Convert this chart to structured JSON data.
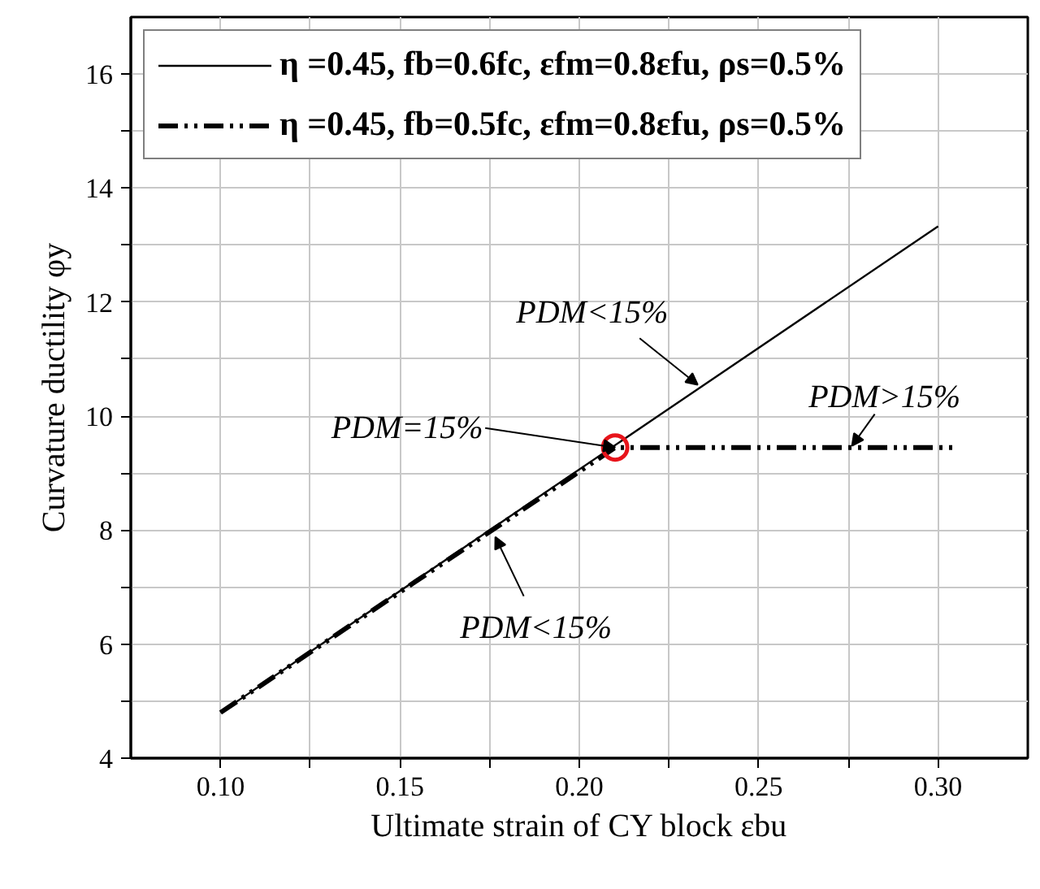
{
  "chart_data": {
    "type": "line",
    "xlabel": "Ultimate strain of CY block εbu",
    "ylabel": "Curvature ductility φy",
    "series": [
      {
        "name": "η =0.45, fb=0.6fc, εfm=0.8εfu, ρs=0.5%",
        "color": "#000000",
        "line_style": "solid",
        "x": [
          0.1,
          0.3
        ],
        "values": [
          4.8,
          13.33
        ]
      },
      {
        "name": "η =0.45, fb=0.5fc, εfm=0.8εfu, ρs=0.5%",
        "color": "#000000",
        "line_style": "dashed",
        "x": [
          0.1,
          0.21,
          0.305
        ],
        "values": [
          4.8,
          9.45,
          9.45
        ]
      },
      {
        "type": "scatter",
        "marker": "circle",
        "color": "#e8141b",
        "x": [
          0.21
        ],
        "values": [
          9.45
        ]
      }
    ],
    "xlim": [
      0.075,
      0.325
    ],
    "ylim": [
      4,
      17
    ],
    "xticks": [
      {
        "value": 0.1,
        "label": "0.10"
      },
      {
        "value": 0.125,
        "label": null
      },
      0.15,
      {
        "value": 0.175,
        "label": null
      },
      {
        "value": 0.2,
        "label": "0.20"
      },
      {
        "value": 0.225,
        "label": null
      },
      0.25,
      {
        "value": 0.275,
        "label": null
      },
      {
        "value": 0.3,
        "label": "0.30"
      }
    ],
    "yticks": [
      4,
      {
        "value": 5,
        "label": null
      },
      6,
      {
        "value": 7,
        "label": null
      },
      8,
      {
        "value": 9,
        "label": null
      },
      10,
      {
        "value": 11,
        "label": null
      },
      12,
      {
        "value": 13,
        "label": null
      },
      14,
      {
        "value": 15,
        "label": null
      },
      16
    ],
    "annotations": [
      {
        "text": "PDM<15%",
        "x": 0.233,
        "y": 10.55
      },
      {
        "text": "PDM>15%",
        "x": 0.276,
        "y": 9.48
      },
      {
        "text": "PDM=15%",
        "x": 0.21,
        "y": 9.45
      },
      {
        "text": "PDM<15%",
        "x": 0.1766,
        "y": 7.88
      }
    ],
    "grid": true,
    "legend": "top left"
  }
}
